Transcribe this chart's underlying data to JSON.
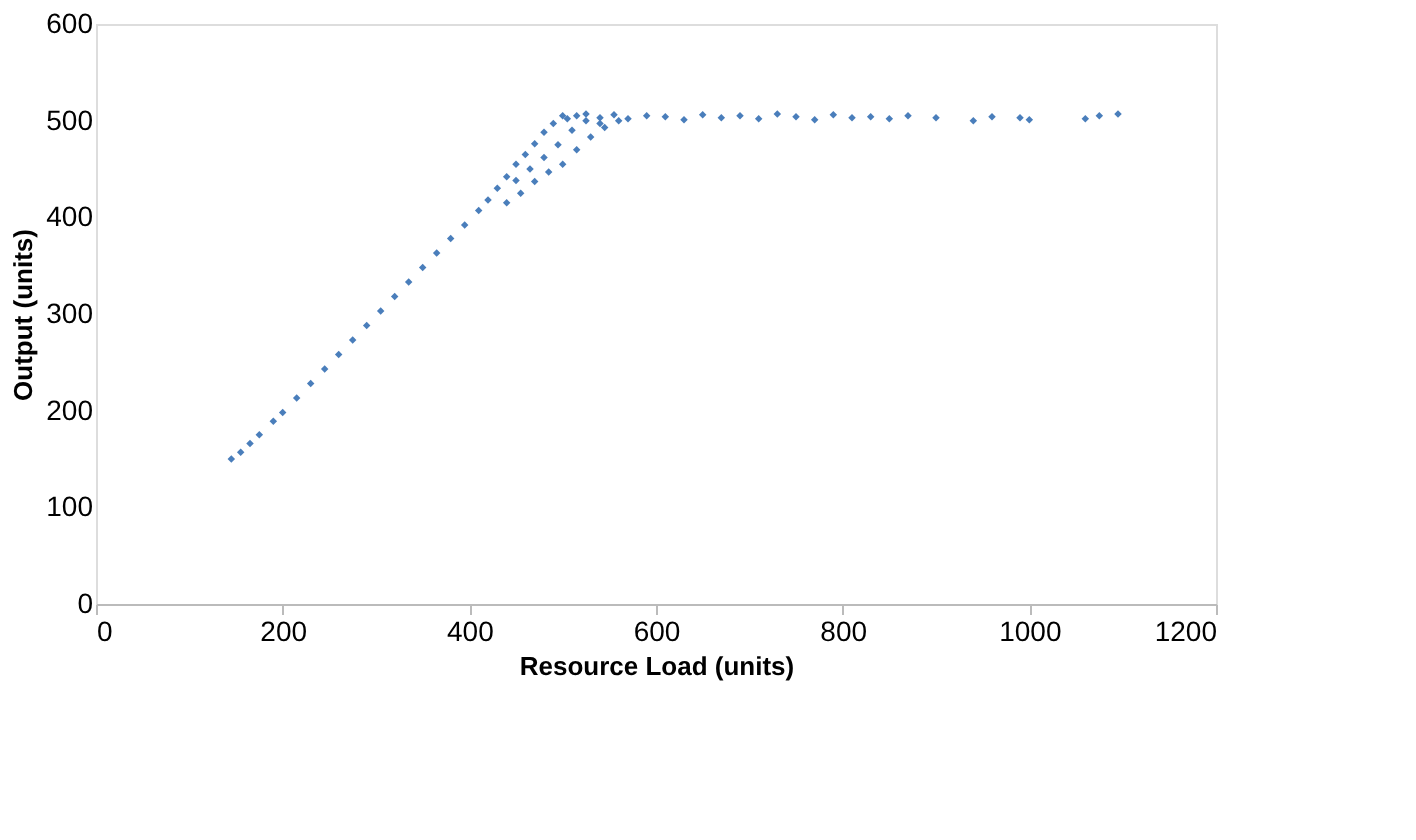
{
  "chart_data": {
    "type": "scatter",
    "xlabel": "Resource Load (units)",
    "ylabel": "Output (units)",
    "marker": "diamond",
    "grid": false,
    "xlim": [
      0,
      1200
    ],
    "xticks": [
      0,
      200,
      400,
      600,
      800,
      1000,
      1200
    ],
    "ylim": [
      0,
      600
    ],
    "yticks": [
      0,
      100,
      200,
      300,
      400,
      500,
      600
    ],
    "series": [
      {
        "color": "#4a7ebb",
        "x": [
          145,
          155,
          165,
          175,
          190,
          200,
          215,
          230,
          245,
          260,
          275,
          290,
          305,
          320,
          335,
          350,
          365,
          380,
          395,
          410,
          420,
          430,
          440,
          450,
          460,
          470,
          480,
          490,
          500,
          440,
          455,
          470,
          485,
          500,
          515,
          530,
          545,
          560,
          450,
          465,
          480,
          495,
          510,
          525,
          540,
          505,
          515,
          525,
          540,
          555,
          570,
          590,
          610,
          630,
          650,
          670,
          690,
          710,
          730,
          750,
          770,
          790,
          810,
          830,
          850,
          870,
          900,
          940,
          960,
          990,
          1000,
          1060,
          1075,
          1095
        ],
        "values": [
          150,
          157,
          166,
          175,
          189,
          198,
          213,
          228,
          243,
          258,
          273,
          288,
          303,
          318,
          333,
          348,
          363,
          378,
          392,
          407,
          418,
          430,
          442,
          455,
          465,
          476,
          488,
          497,
          505,
          415,
          425,
          437,
          447,
          455,
          470,
          483,
          493,
          500,
          438,
          450,
          462,
          475,
          490,
          500,
          497,
          502,
          505,
          507,
          503,
          506,
          502,
          505,
          504,
          501,
          506,
          503,
          505,
          502,
          507,
          504,
          501,
          506,
          503,
          504,
          502,
          505,
          503,
          500,
          504,
          503,
          501,
          502,
          505,
          507
        ]
      }
    ]
  }
}
